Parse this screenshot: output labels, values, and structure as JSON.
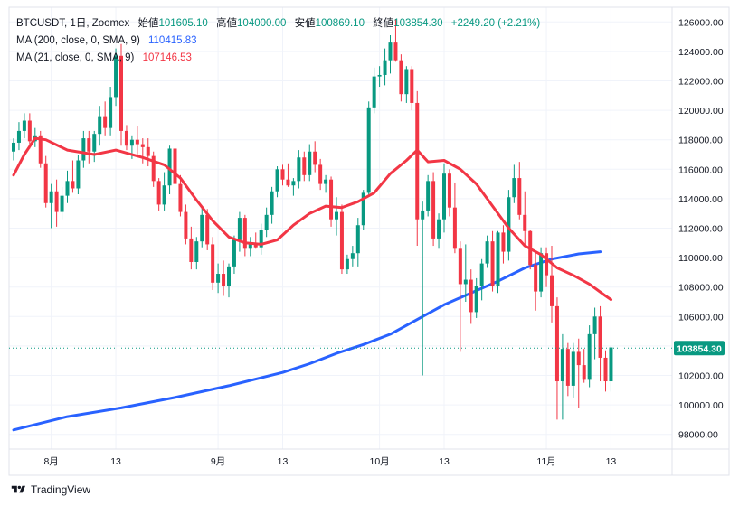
{
  "header": {
    "symbol": "BTCUSDT, 1日, Zoomex",
    "open_label": "始値",
    "open_value": "101605.10",
    "high_label": "高値",
    "high_value": "104000.00",
    "low_label": "安値",
    "low_value": "100869.10",
    "close_label": "終値",
    "close_value": "103854.30",
    "change": "+2249.20 (+2.21%)"
  },
  "indicators": [
    {
      "label": "MA (200, close, 0, SMA, 9)",
      "value": "110415.83",
      "color": "#2962ff"
    },
    {
      "label": "MA (21, close, 0, SMA, 9)",
      "value": "107146.53",
      "color": "#f23645"
    }
  ],
  "footer": {
    "brand": "TradingView"
  },
  "colors": {
    "up": "#089981",
    "down": "#f23645",
    "ma200": "#2962ff",
    "ma21": "#f23645",
    "grid": "#f0f3fa"
  },
  "chart_data": {
    "type": "candlestick",
    "ylim": [
      97000,
      127000
    ],
    "yticks": [
      "98000.00",
      "100000.00",
      "102000.00",
      "104000.00",
      "106000.00",
      "108000.00",
      "110000.00",
      "112000.00",
      "114000.00",
      "116000.00",
      "118000.00",
      "120000.00",
      "122000.00",
      "124000.00",
      "126000.00"
    ],
    "xticks": [
      {
        "i": 7,
        "label": "8月"
      },
      {
        "i": 19,
        "label": "13"
      },
      {
        "i": 38,
        "label": "9月"
      },
      {
        "i": 50,
        "label": "13"
      },
      {
        "i": 68,
        "label": "10月"
      },
      {
        "i": 80,
        "label": "13"
      },
      {
        "i": 99,
        "label": "11月"
      },
      {
        "i": 111,
        "label": "13"
      }
    ],
    "last_price": "103854.30",
    "last_price_value": 103854.3,
    "ohlc": [
      [
        117200,
        118100,
        116600,
        117800
      ],
      [
        117800,
        119200,
        117300,
        118600
      ],
      [
        118600,
        119800,
        118100,
        119300
      ],
      [
        119300,
        119800,
        117400,
        117900
      ],
      [
        117900,
        118800,
        117500,
        118300
      ],
      [
        118300,
        118600,
        116100,
        116400
      ],
      [
        116400,
        116900,
        113400,
        113700
      ],
      [
        113700,
        115000,
        112000,
        114500
      ],
      [
        114500,
        115300,
        112100,
        113100
      ],
      [
        113100,
        114800,
        112600,
        114200
      ],
      [
        114200,
        115900,
        113700,
        115200
      ],
      [
        115200,
        116600,
        114400,
        114700
      ],
      [
        114700,
        117000,
        114300,
        116600
      ],
      [
        116600,
        118600,
        116100,
        118100
      ],
      [
        118100,
        118600,
        116400,
        117200
      ],
      [
        117200,
        118600,
        116500,
        118400
      ],
      [
        118400,
        120300,
        117600,
        119600
      ],
      [
        119600,
        120600,
        118300,
        118800
      ],
      [
        118800,
        121600,
        118300,
        120900
      ],
      [
        120900,
        124200,
        120300,
        123700
      ],
      [
        123700,
        124500,
        117600,
        118600
      ],
      [
        118600,
        119000,
        117300,
        117600
      ],
      [
        117600,
        118300,
        116700,
        118000
      ],
      [
        118000,
        118900,
        116900,
        117700
      ],
      [
        117700,
        118100,
        116400,
        117500
      ],
      [
        117500,
        118100,
        116200,
        116900
      ],
      [
        116900,
        117200,
        114800,
        115200
      ],
      [
        115200,
        115400,
        113200,
        113600
      ],
      [
        113600,
        115800,
        113200,
        114900
      ],
      [
        114900,
        117600,
        114300,
        117400
      ],
      [
        117400,
        117900,
        114600,
        115000
      ],
      [
        115000,
        115600,
        112800,
        113100
      ],
      [
        113100,
        113600,
        110900,
        111300
      ],
      [
        111300,
        112100,
        109200,
        109700
      ],
      [
        109700,
        111400,
        109200,
        111100
      ],
      [
        111100,
        113400,
        110700,
        112900
      ],
      [
        112900,
        113300,
        110500,
        110900
      ],
      [
        110900,
        111400,
        107800,
        108300
      ],
      [
        108300,
        109600,
        107600,
        108900
      ],
      [
        108900,
        109800,
        107400,
        108100
      ],
      [
        108100,
        109600,
        107300,
        109400
      ],
      [
        109400,
        111500,
        108900,
        111200
      ],
      [
        111200,
        113100,
        110400,
        112700
      ],
      [
        112700,
        112900,
        110100,
        110600
      ],
      [
        110600,
        111400,
        110100,
        111000
      ],
      [
        111000,
        111700,
        110600,
        110700
      ],
      [
        110700,
        112300,
        110200,
        111900
      ],
      [
        111900,
        113400,
        111400,
        112900
      ],
      [
        112900,
        114800,
        112300,
        114500
      ],
      [
        114500,
        116200,
        114100,
        116000
      ],
      [
        116000,
        116300,
        114900,
        115300
      ],
      [
        115300,
        116400,
        114800,
        114900
      ],
      [
        114900,
        115400,
        114200,
        115200
      ],
      [
        115200,
        117300,
        114700,
        116800
      ],
      [
        116800,
        117200,
        115200,
        115600
      ],
      [
        115600,
        117700,
        115200,
        117200
      ],
      [
        117200,
        117900,
        115800,
        116300
      ],
      [
        116300,
        116700,
        114600,
        115000
      ],
      [
        115000,
        115600,
        114400,
        115300
      ],
      [
        115300,
        115500,
        112100,
        112600
      ],
      [
        112600,
        114100,
        111500,
        113100
      ],
      [
        113100,
        113600,
        108900,
        109200
      ],
      [
        109200,
        110200,
        108900,
        109900
      ],
      [
        109900,
        110800,
        109400,
        110300
      ],
      [
        110300,
        112700,
        109400,
        112200
      ],
      [
        112200,
        114600,
        111900,
        114400
      ],
      [
        114400,
        120600,
        114200,
        120200
      ],
      [
        120200,
        122900,
        119800,
        122300
      ],
      [
        122300,
        123000,
        121600,
        122400
      ],
      [
        122400,
        124200,
        121700,
        123400
      ],
      [
        123400,
        125100,
        122500,
        124600
      ],
      [
        124600,
        126200,
        123300,
        123400
      ],
      [
        123400,
        123800,
        120600,
        121100
      ],
      [
        121100,
        123000,
        120500,
        122800
      ],
      [
        122800,
        123000,
        120000,
        120500
      ],
      [
        120500,
        121300,
        110800,
        112600
      ],
      [
        112600,
        113800,
        102000,
        113200
      ],
      [
        113200,
        115600,
        112800,
        115200
      ],
      [
        115200,
        115800,
        110800,
        111300
      ],
      [
        111300,
        113000,
        110600,
        112600
      ],
      [
        112600,
        116400,
        111700,
        115700
      ],
      [
        115700,
        116000,
        112800,
        113400
      ],
      [
        113400,
        115100,
        110300,
        110600
      ],
      [
        110600,
        111100,
        103600,
        108200
      ],
      [
        108200,
        110900,
        107000,
        108500
      ],
      [
        108500,
        109200,
        105500,
        106300
      ],
      [
        106300,
        108600,
        105900,
        108100
      ],
      [
        108100,
        109900,
        107100,
        109600
      ],
      [
        109600,
        111500,
        109300,
        111100
      ],
      [
        111100,
        111800,
        107700,
        108100
      ],
      [
        108100,
        111800,
        107600,
        111700
      ],
      [
        111700,
        112200,
        109600,
        110400
      ],
      [
        110400,
        114600,
        109800,
        114100
      ],
      [
        114100,
        116300,
        113700,
        115400
      ],
      [
        115400,
        116500,
        112600,
        112900
      ],
      [
        112900,
        114500,
        110800,
        111800
      ],
      [
        111800,
        111900,
        109200,
        109500
      ],
      [
        109500,
        110400,
        106400,
        107700
      ],
      [
        107700,
        110700,
        107300,
        110300
      ],
      [
        110300,
        110700,
        108000,
        108800
      ],
      [
        108800,
        110800,
        105600,
        106700
      ],
      [
        106700,
        107300,
        99000,
        101600
      ],
      [
        101600,
        104800,
        99000,
        103800
      ],
      [
        103800,
        104200,
        100600,
        101300
      ],
      [
        101300,
        104200,
        100500,
        103600
      ],
      [
        103600,
        104500,
        99800,
        102700
      ],
      [
        102700,
        103800,
        101500,
        101700
      ],
      [
        101700,
        105400,
        101200,
        104800
      ],
      [
        104800,
        106600,
        103100,
        106000
      ],
      [
        106000,
        106700,
        101600,
        103200
      ],
      [
        103200,
        103700,
        100900,
        101600
      ],
      [
        101600,
        104000,
        100900,
        103900
      ]
    ],
    "ma200": [
      [
        0,
        98300
      ],
      [
        10,
        99200
      ],
      [
        20,
        99800
      ],
      [
        30,
        100500
      ],
      [
        40,
        101300
      ],
      [
        50,
        102200
      ],
      [
        55,
        102800
      ],
      [
        60,
        103500
      ],
      [
        65,
        104100
      ],
      [
        70,
        104800
      ],
      [
        75,
        105800
      ],
      [
        80,
        106800
      ],
      [
        85,
        107600
      ],
      [
        90,
        108400
      ],
      [
        95,
        109300
      ],
      [
        100,
        109900
      ],
      [
        105,
        110250
      ],
      [
        109,
        110400
      ]
    ],
    "ma21": [
      [
        0,
        115600
      ],
      [
        2,
        117000
      ],
      [
        4,
        118100
      ],
      [
        6,
        118000
      ],
      [
        10,
        117300
      ],
      [
        15,
        117000
      ],
      [
        19,
        117300
      ],
      [
        24,
        116800
      ],
      [
        28,
        116300
      ],
      [
        31,
        115400
      ],
      [
        34,
        113900
      ],
      [
        37,
        112500
      ],
      [
        40,
        111400
      ],
      [
        43,
        111000
      ],
      [
        46,
        110900
      ],
      [
        49,
        111200
      ],
      [
        52,
        112200
      ],
      [
        55,
        113000
      ],
      [
        58,
        113500
      ],
      [
        61,
        113400
      ],
      [
        64,
        113800
      ],
      [
        67,
        114400
      ],
      [
        70,
        115700
      ],
      [
        73,
        116600
      ],
      [
        75,
        117300
      ],
      [
        77,
        116500
      ],
      [
        80,
        116600
      ],
      [
        83,
        116000
      ],
      [
        86,
        115000
      ],
      [
        89,
        113500
      ],
      [
        92,
        112000
      ],
      [
        95,
        110800
      ],
      [
        98,
        110200
      ],
      [
        101,
        109300
      ],
      [
        104,
        108800
      ],
      [
        107,
        108200
      ],
      [
        110,
        107400
      ],
      [
        111,
        107150
      ]
    ]
  }
}
